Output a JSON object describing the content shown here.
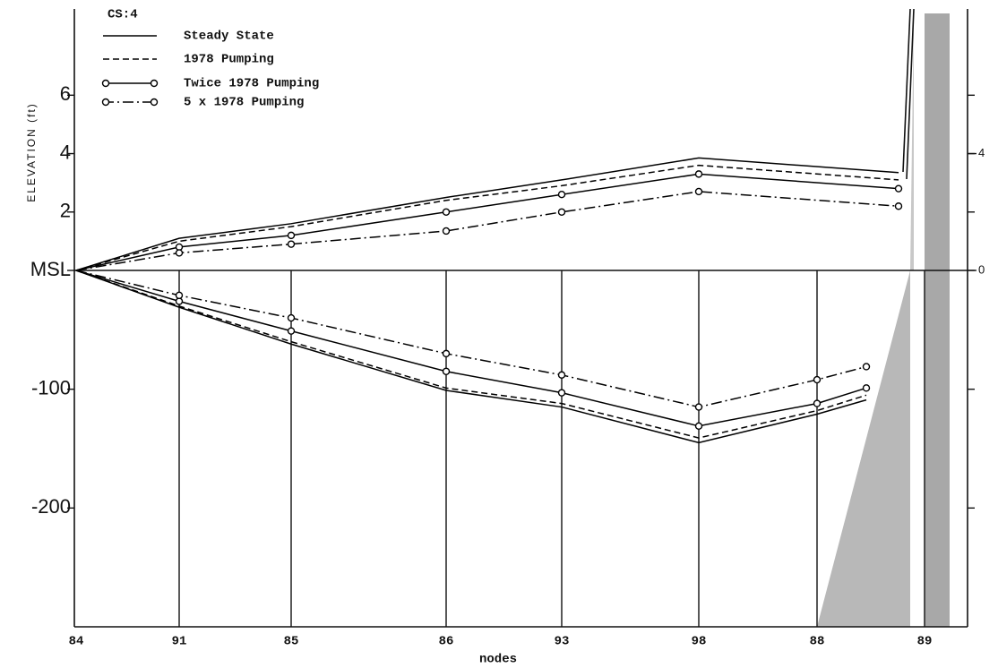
{
  "chart_data": [
    {
      "type": "line",
      "legend_title": "CS:4",
      "ylabel": "ELEVATION (ft)",
      "ylim": [
        0,
        8.8
      ],
      "yticks": [
        {
          "value": 0,
          "label": "MSL"
        },
        2,
        4,
        6
      ],
      "y2ticks": [
        0,
        4
      ],
      "series": [
        {
          "name": "Steady State",
          "color": "#000000",
          "dash": "solid",
          "markers": false,
          "values": [
            0,
            1.1,
            1.6,
            2.5,
            3.1,
            3.85,
            3.35
          ]
        },
        {
          "name": "1978 Pumping",
          "color": "#000000",
          "dash": "dashed",
          "markers": false,
          "values": [
            0,
            1.0,
            1.5,
            2.4,
            2.9,
            3.6,
            3.1
          ]
        },
        {
          "name": "Twice 1978 Pumping",
          "color": "#000000",
          "dash": "solid",
          "markers": true,
          "values": [
            0,
            0.8,
            1.2,
            2.0,
            2.6,
            3.3,
            2.8
          ]
        },
        {
          "name": "5 x 1978 Pumping",
          "color": "#000000",
          "dash": "dashdot",
          "markers": true,
          "values": [
            0,
            0.6,
            0.9,
            1.35,
            2.0,
            2.7,
            2.2
          ]
        }
      ]
    },
    {
      "type": "line",
      "xlabel": "nodes",
      "categories": [
        "84",
        "91",
        "85",
        "86",
        "93",
        "98",
        "88",
        "89"
      ],
      "ylim": [
        -300,
        0
      ],
      "yticks": [
        -200,
        -100
      ],
      "series": [
        {
          "name": "Steady State",
          "color": "#000000",
          "dash": "solid",
          "markers": false,
          "values": [
            0,
            -31,
            -62,
            -101,
            -115,
            -145,
            -121,
            -109
          ]
        },
        {
          "name": "1978 Pumping",
          "color": "#000000",
          "dash": "dashed",
          "markers": false,
          "values": [
            0,
            -30,
            -60,
            -99,
            -112,
            -141,
            -118,
            -105
          ]
        },
        {
          "name": "Twice 1978 Pumping",
          "color": "#000000",
          "dash": "solid",
          "markers": true,
          "values": [
            0,
            -26,
            -51,
            -85,
            -103,
            -131,
            -112,
            -99
          ]
        },
        {
          "name": "5 x 1978 Pumping",
          "color": "#000000",
          "dash": "dashdot",
          "markers": true,
          "values": [
            0,
            -21,
            -40,
            -70,
            -88,
            -115,
            -92,
            -81
          ]
        }
      ]
    }
  ]
}
